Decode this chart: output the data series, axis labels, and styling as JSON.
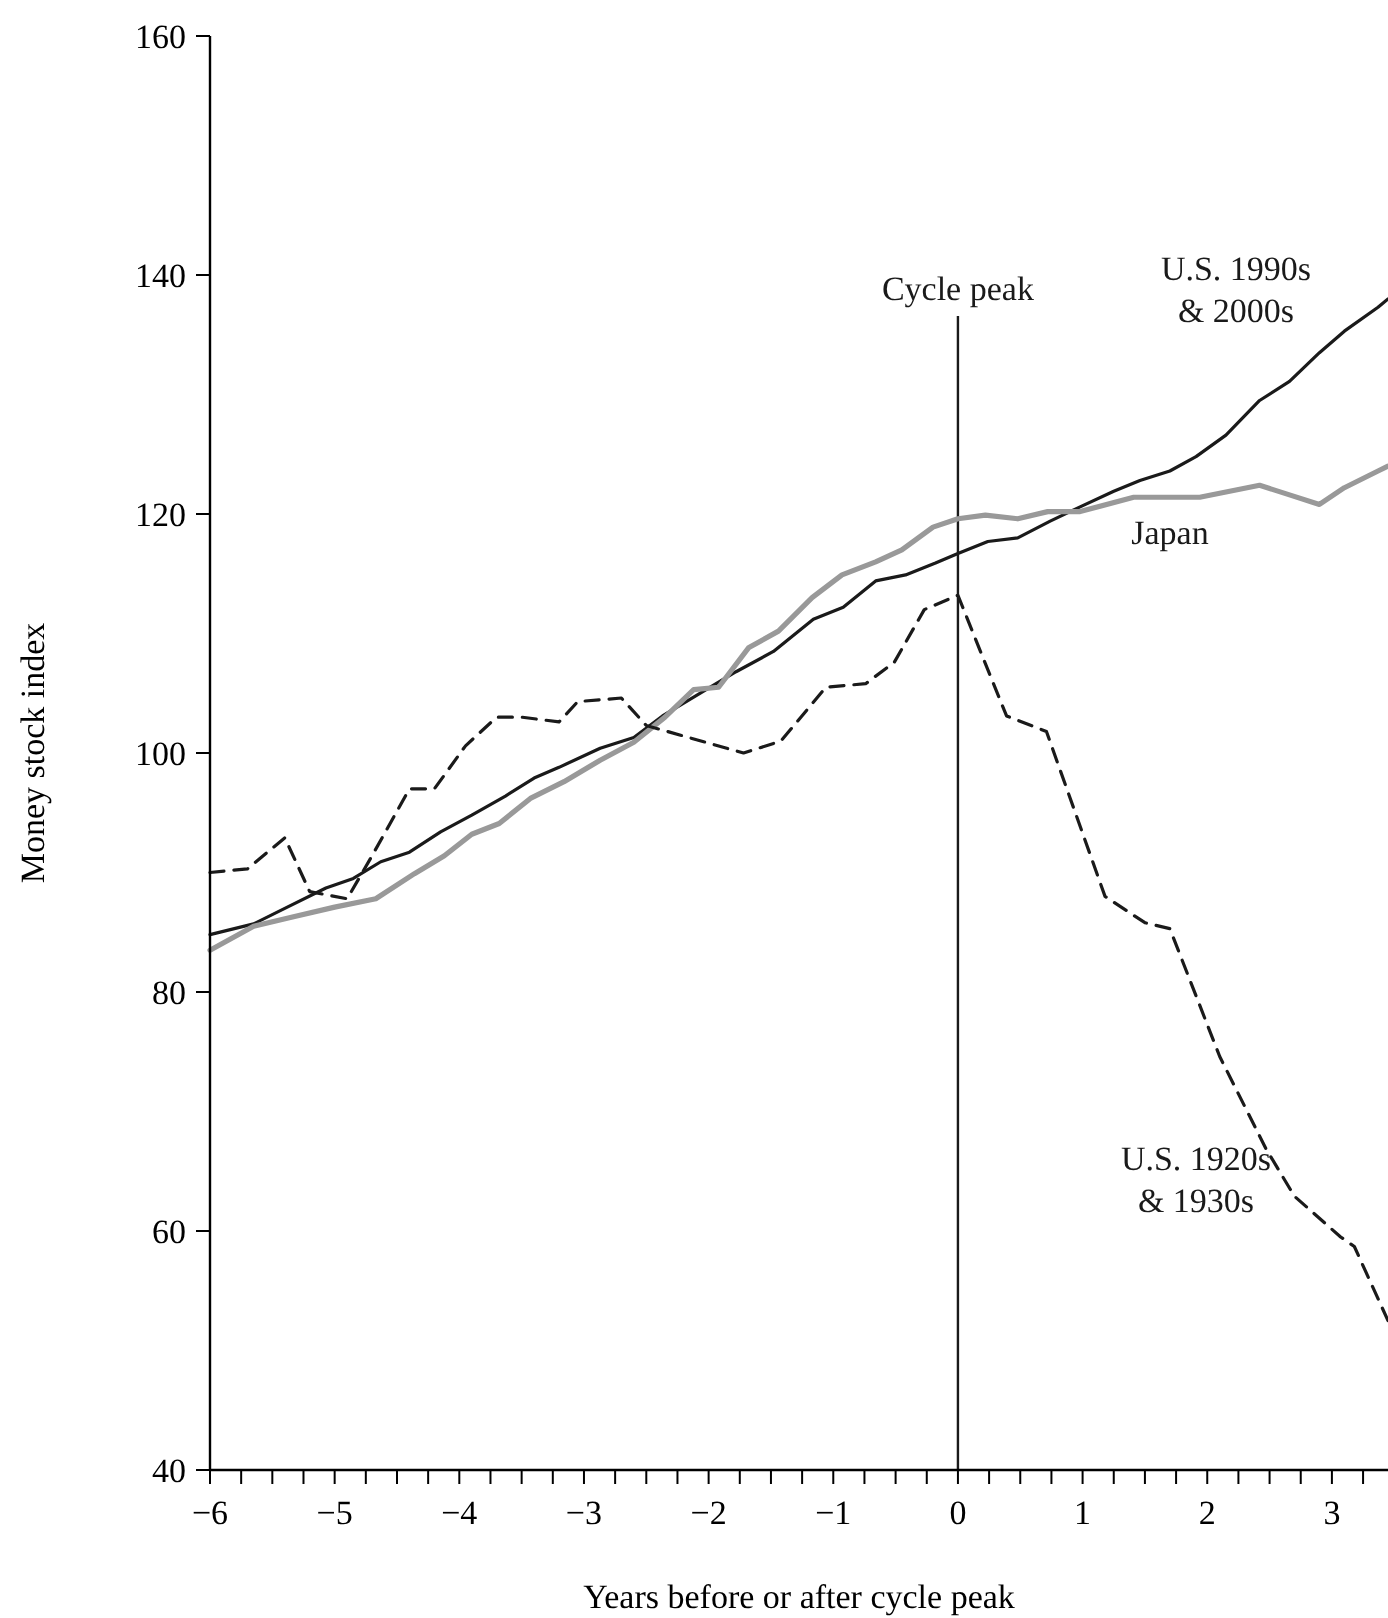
{
  "chart_data": {
    "type": "line",
    "xlabel": "Years before or after cycle peak",
    "ylabel": "Money stock index",
    "xlim": [
      -6,
      3.45
    ],
    "ylim": [
      40,
      160
    ],
    "xticks": [
      -6,
      {
        "value": -5.75,
        "label": null
      },
      {
        "value": -5.5,
        "label": null
      },
      {
        "value": -5.25,
        "label": null
      },
      {
        "value": -5,
        "label": "−5"
      },
      {
        "value": -4.75,
        "label": null
      },
      {
        "value": -4.5,
        "label": null
      },
      {
        "value": -4.25,
        "label": null
      },
      {
        "value": -4,
        "label": "−4"
      },
      {
        "value": -3.75,
        "label": null
      },
      {
        "value": -3.5,
        "label": null
      },
      {
        "value": -3.25,
        "label": null
      },
      {
        "value": -3,
        "label": "−3"
      },
      {
        "value": -2.75,
        "label": null
      },
      {
        "value": -2.5,
        "label": null
      },
      {
        "value": -2.25,
        "label": null
      },
      {
        "value": -2,
        "label": "−2"
      },
      {
        "value": -1.75,
        "label": null
      },
      {
        "value": -1.5,
        "label": null
      },
      {
        "value": -1.25,
        "label": null
      },
      {
        "value": -1,
        "label": "−1"
      },
      {
        "value": -0.75,
        "label": null
      },
      {
        "value": -0.5,
        "label": null
      },
      {
        "value": -0.25,
        "label": null
      },
      0,
      {
        "value": 0.25,
        "label": null
      },
      {
        "value": 0.5,
        "label": null
      },
      {
        "value": 0.75,
        "label": null
      },
      1,
      {
        "value": 1.25,
        "label": null
      },
      {
        "value": 1.5,
        "label": null
      },
      {
        "value": 1.75,
        "label": null
      },
      2,
      {
        "value": 2.25,
        "label": null
      },
      {
        "value": 2.5,
        "label": null
      },
      {
        "value": 2.75,
        "label": null
      },
      3,
      {
        "value": 3.25,
        "label": null
      }
    ],
    "yticks": [
      40,
      60,
      80,
      100,
      120,
      140,
      160
    ],
    "grid": false,
    "legend": false,
    "marker": "none",
    "ref_lines": [
      {
        "axis": "x",
        "value": 0,
        "label": "Cycle peak",
        "color": "#1a1a1a",
        "line_style": "solid"
      }
    ],
    "series": [
      {
        "name": "U.S. 1990s & 2000s",
        "color": "#1a1a1a",
        "line_style": "solid",
        "x": [
          -6,
          -5.65,
          -5.4,
          -5.07,
          -4.85,
          -4.63,
          -4.4,
          -4.15,
          -3.9,
          -3.63,
          -3.4,
          -3.2,
          -2.87,
          -2.6,
          -2.37,
          -2.1,
          -1.78,
          -1.48,
          -1.16,
          -0.92,
          -0.66,
          -0.42,
          -0.18,
          0,
          0.24,
          0.48,
          0.74,
          0.98,
          1.25,
          1.46,
          1.7,
          1.91,
          2.15,
          2.42,
          2.66,
          2.9,
          3.1,
          3.37,
          3.45
        ],
        "values": [
          84.8,
          85.7,
          87,
          88.7,
          89.5,
          90.9,
          91.7,
          93.4,
          94.8,
          96.4,
          97.9,
          98.8,
          100.4,
          101.3,
          103.1,
          104.8,
          106.8,
          108.5,
          111.2,
          112.2,
          114.4,
          114.9,
          115.9,
          116.7,
          117.7,
          118,
          119.4,
          120.6,
          121.9,
          122.8,
          123.6,
          124.8,
          126.6,
          129.5,
          131.1,
          133.5,
          135.3,
          137.3,
          138
        ]
      },
      {
        "name": "Japan",
        "color": "#999999",
        "line_style": "solid",
        "x": [
          -6,
          -5.65,
          -5.33,
          -5,
          -4.67,
          -4.36,
          -4.12,
          -3.9,
          -3.68,
          -3.43,
          -3.16,
          -2.87,
          -2.6,
          -2.35,
          -2.12,
          -1.92,
          -1.68,
          -1.44,
          -1.17,
          -0.93,
          -0.66,
          -0.45,
          -0.2,
          0,
          0.22,
          0.48,
          0.72,
          0.98,
          1.41,
          1.94,
          2.42,
          2.66,
          2.9,
          3.1,
          3.37,
          3.45
        ],
        "values": [
          83.5,
          85.5,
          86.3,
          87.1,
          87.8,
          89.9,
          91.4,
          93.2,
          94.1,
          96.2,
          97.6,
          99.4,
          100.9,
          103,
          105.3,
          105.5,
          108.8,
          110.2,
          113,
          114.9,
          116,
          117,
          118.9,
          119.6,
          119.9,
          119.6,
          120.2,
          120.2,
          121.4,
          121.4,
          122.4,
          121.6,
          120.8,
          122.2,
          123.6,
          124
        ]
      },
      {
        "name": "U.S. 1920s & 1930s",
        "color": "#1a1a1a",
        "line_style": "dashed",
        "x": [
          -6,
          -5.7,
          -5.4,
          -5.2,
          -4.9,
          -4.7,
          -4.4,
          -4.2,
          -3.95,
          -3.7,
          -3.5,
          -3.2,
          -3.05,
          -2.7,
          -2.5,
          -1.72,
          -1.42,
          -1.06,
          -0.74,
          -0.51,
          -0.27,
          0,
          0.2,
          0.39,
          0.71,
          1.18,
          1.5,
          1.7,
          2.1,
          2.47,
          2.7,
          3.07,
          3.18,
          3.45
        ],
        "values": [
          90,
          90.3,
          92.9,
          88.4,
          87.8,
          91.4,
          97,
          97,
          100.6,
          103,
          103,
          102.6,
          104.3,
          104.6,
          102.3,
          100,
          101,
          105.5,
          105.8,
          107.6,
          112,
          113.2,
          108,
          103.1,
          101.8,
          88,
          85.8,
          85.3,
          74.6,
          66.9,
          62.9,
          59.5,
          58.7,
          52.5
        ]
      }
    ]
  }
}
